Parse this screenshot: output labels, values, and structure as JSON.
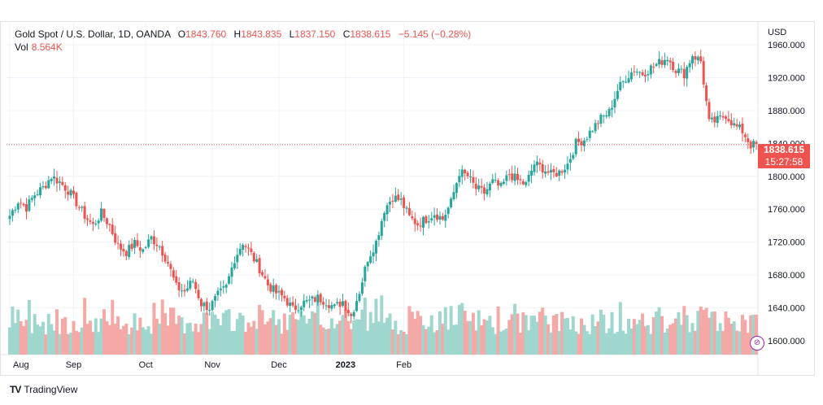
{
  "legend": {
    "symbol": "Gold Spot / U.S. Dollar, 1D, OANDA",
    "open_label": "O",
    "open": "1843.760",
    "high_label": "H",
    "high": "1843.835",
    "low_label": "L",
    "low": "1837.150",
    "close_label": "C",
    "close": "1838.615",
    "change": "−5.145 (−0.28%)",
    "vol_label": "Vol",
    "vol": "8.564K"
  },
  "currency": "USD",
  "last_price": "1838.615",
  "countdown": "15:27:58",
  "brand": "TradingView",
  "icons": {
    "brand": "tradingview-logo-icon",
    "timezone": "timezone-icon"
  },
  "colors": {
    "up": "#26a69a",
    "down": "#ef5350",
    "up_vol": "#9fd7cf",
    "down_vol": "#f4a9a7",
    "grid": "#f0f3fa"
  },
  "chart_data": {
    "type": "candlestick",
    "y_ticks": [
      "1960.000",
      "1920.000",
      "1880.000",
      "1840.000",
      "1800.000",
      "1760.000",
      "1720.000",
      "1680.000",
      "1640.000",
      "1600.000"
    ],
    "x_ticks": [
      "Aug",
      "Sep",
      "Oct",
      "Nov",
      "Dec",
      "2023",
      "Feb"
    ],
    "ylim": [
      1583,
      1975
    ],
    "grid": true,
    "last_price_line": 1838.615,
    "anchors": [
      [
        0,
        1752
      ],
      [
        3,
        1770
      ],
      [
        6,
        1762
      ],
      [
        9,
        1778
      ],
      [
        12,
        1786
      ],
      [
        15,
        1800
      ],
      [
        18,
        1793
      ],
      [
        21,
        1783
      ],
      [
        24,
        1768
      ],
      [
        27,
        1752
      ],
      [
        30,
        1740
      ],
      [
        33,
        1755
      ],
      [
        36,
        1740
      ],
      [
        39,
        1715
      ],
      [
        42,
        1708
      ],
      [
        45,
        1718
      ],
      [
        48,
        1710
      ],
      [
        51,
        1725
      ],
      [
        54,
        1715
      ],
      [
        57,
        1695
      ],
      [
        60,
        1665
      ],
      [
        63,
        1660
      ],
      [
        66,
        1673
      ],
      [
        69,
        1645
      ],
      [
        72,
        1640
      ],
      [
        75,
        1655
      ],
      [
        78,
        1665
      ],
      [
        81,
        1700
      ],
      [
        84,
        1720
      ],
      [
        87,
        1705
      ],
      [
        90,
        1688
      ],
      [
        93,
        1668
      ],
      [
        96,
        1658
      ],
      [
        99,
        1652
      ],
      [
        102,
        1638
      ],
      [
        105,
        1645
      ],
      [
        108,
        1648
      ],
      [
        111,
        1652
      ],
      [
        114,
        1648
      ],
      [
        117,
        1640
      ],
      [
        120,
        1648
      ],
      [
        123,
        1630
      ],
      [
        126,
        1660
      ],
      [
        129,
        1700
      ],
      [
        132,
        1720
      ],
      [
        135,
        1760
      ],
      [
        138,
        1775
      ],
      [
        141,
        1770
      ],
      [
        144,
        1750
      ],
      [
        147,
        1742
      ],
      [
        150,
        1748
      ],
      [
        153,
        1755
      ],
      [
        156,
        1748
      ],
      [
        159,
        1768
      ],
      [
        162,
        1805
      ],
      [
        165,
        1800
      ],
      [
        168,
        1785
      ],
      [
        171,
        1780
      ],
      [
        174,
        1793
      ],
      [
        177,
        1786
      ],
      [
        180,
        1803
      ],
      [
        183,
        1795
      ],
      [
        186,
        1790
      ],
      [
        189,
        1815
      ],
      [
        192,
        1810
      ],
      [
        195,
        1802
      ],
      [
        198,
        1805
      ],
      [
        201,
        1815
      ],
      [
        204,
        1840
      ],
      [
        207,
        1845
      ],
      [
        210,
        1858
      ],
      [
        213,
        1870
      ],
      [
        216,
        1878
      ],
      [
        219,
        1905
      ],
      [
        222,
        1920
      ],
      [
        225,
        1930
      ],
      [
        228,
        1925
      ],
      [
        231,
        1932
      ],
      [
        234,
        1938
      ],
      [
        237,
        1945
      ],
      [
        240,
        1930
      ],
      [
        243,
        1925
      ],
      [
        246,
        1948
      ],
      [
        249,
        1940
      ],
      [
        252,
        1865
      ],
      [
        255,
        1868
      ],
      [
        258,
        1875
      ],
      [
        261,
        1862
      ],
      [
        264,
        1855
      ],
      [
        267,
        1838
      ],
      [
        269,
        1838
      ]
    ],
    "volume_range": [
      4,
      12
    ]
  }
}
